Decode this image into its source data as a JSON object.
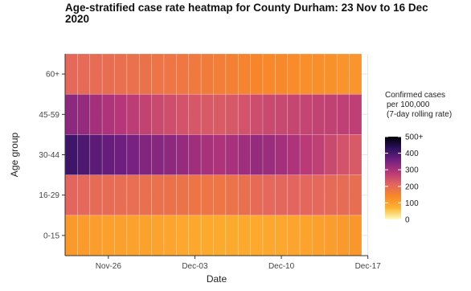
{
  "chart_data": {
    "type": "heatmap",
    "title": "Age-stratified case rate heatmap for County Durham: 23 Nov to 16 Dec 2020",
    "xlabel": "Date",
    "ylabel": "Age group",
    "x_start": "2020-11-23",
    "x_end": "2020-12-16",
    "x_dates": [
      "2020-11-23",
      "2020-11-24",
      "2020-11-25",
      "2020-11-26",
      "2020-11-27",
      "2020-11-28",
      "2020-11-29",
      "2020-11-30",
      "2020-12-01",
      "2020-12-02",
      "2020-12-03",
      "2020-12-04",
      "2020-12-05",
      "2020-12-06",
      "2020-12-07",
      "2020-12-08",
      "2020-12-09",
      "2020-12-10",
      "2020-12-11",
      "2020-12-12",
      "2020-12-13",
      "2020-12-14",
      "2020-12-15",
      "2020-12-16"
    ],
    "x_ticks": [
      {
        "date": "2020-11-26",
        "label": "Nov-26"
      },
      {
        "date": "2020-12-03",
        "label": "Dec-03"
      },
      {
        "date": "2020-12-10",
        "label": "Dec-10"
      },
      {
        "date": "2020-12-17",
        "label": "Dec-17"
      }
    ],
    "categories": [
      "0-15",
      "16-29",
      "30-44",
      "45-59",
      "60+"
    ],
    "values": [
      [
        110,
        108,
        105,
        103,
        100,
        98,
        97,
        95,
        92,
        90,
        88,
        86,
        85,
        84,
        84,
        86,
        88,
        90,
        92,
        95,
        100,
        105,
        110,
        115
      ],
      [
        210,
        205,
        200,
        198,
        195,
        192,
        190,
        188,
        185,
        182,
        180,
        178,
        178,
        182,
        190,
        200,
        205,
        208,
        210,
        208,
        205,
        200,
        198,
        195
      ],
      [
        410,
        395,
        380,
        370,
        360,
        350,
        340,
        335,
        330,
        320,
        310,
        300,
        295,
        300,
        310,
        320,
        315,
        305,
        295,
        280,
        270,
        255,
        240,
        230
      ],
      [
        330,
        320,
        305,
        295,
        285,
        275,
        265,
        255,
        248,
        240,
        235,
        230,
        228,
        232,
        240,
        250,
        255,
        258,
        260,
        262,
        265,
        268,
        270,
        272
      ],
      [
        205,
        200,
        198,
        195,
        190,
        188,
        185,
        180,
        178,
        175,
        170,
        165,
        160,
        155,
        150,
        145,
        140,
        138,
        135,
        130,
        128,
        125,
        122,
        120
      ]
    ],
    "legend": {
      "title": [
        "Confirmed cases",
        "per 100,000",
        "(7-day rolling rate)"
      ],
      "ticks": [
        {
          "value": 0,
          "label": "0"
        },
        {
          "value": 100,
          "label": "100"
        },
        {
          "value": 200,
          "label": "200"
        },
        {
          "value": 300,
          "label": "300"
        },
        {
          "value": 400,
          "label": "400"
        },
        {
          "value": 500,
          "label": "500+"
        }
      ],
      "min": 0,
      "max": 500,
      "placement": "right"
    },
    "colorscale": [
      "#fcfdbf",
      "#fdb22f",
      "#f8862a",
      "#e16462",
      "#b63679",
      "#721f81",
      "#2c115f",
      "#000004"
    ],
    "grid": true
  }
}
